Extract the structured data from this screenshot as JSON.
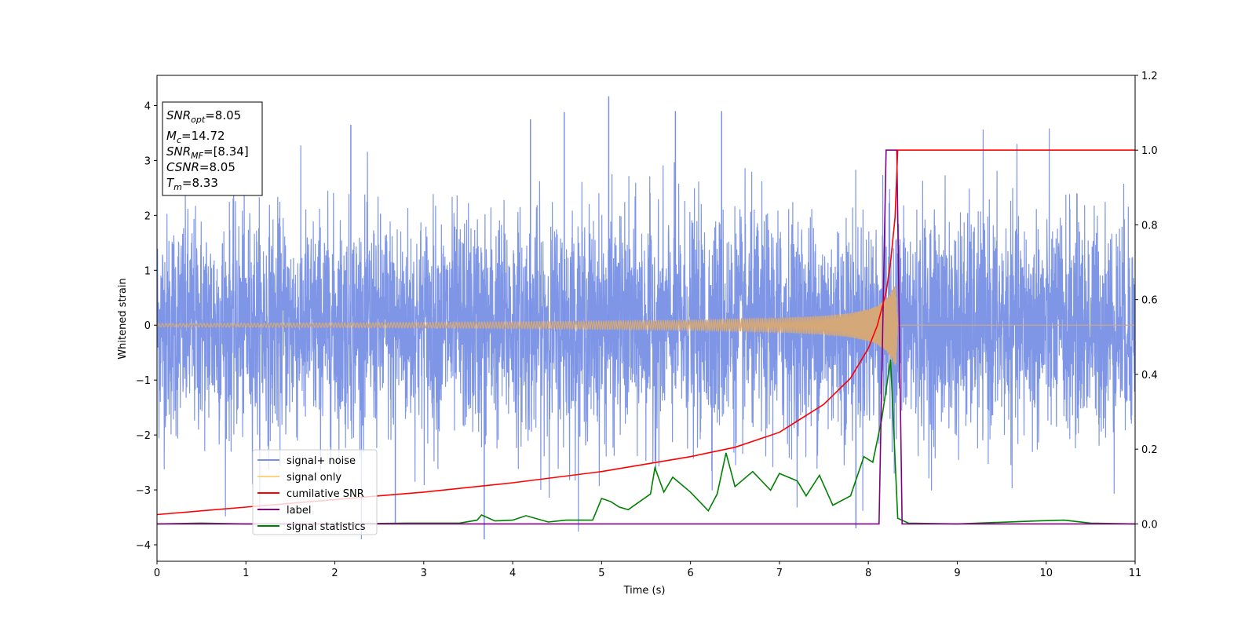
{
  "chart_data": {
    "type": "line",
    "xlabel": "Time (s)",
    "ylabel": "Whitened strain",
    "xlim": [
      0,
      11
    ],
    "ylim_left": [
      -4.3,
      4.55
    ],
    "ylim_right": [
      -0.1,
      1.2
    ],
    "x_ticks": [
      0,
      1,
      2,
      3,
      4,
      5,
      6,
      7,
      8,
      9,
      10,
      11
    ],
    "x_tick_labels": [
      "0",
      "1",
      "2",
      "3",
      "4",
      "5",
      "6",
      "7",
      "8",
      "9",
      "10",
      "11"
    ],
    "y_left_ticks": [
      -4,
      -3,
      -2,
      -1,
      0,
      1,
      2,
      3,
      4
    ],
    "y_left_tick_labels": [
      "−4",
      "−3",
      "−2",
      "−1",
      "0",
      "1",
      "2",
      "3",
      "4"
    ],
    "y_right_ticks": [
      0.0,
      0.2,
      0.4,
      0.6,
      0.8,
      1.0,
      1.2
    ],
    "y_right_tick_labels": [
      "0.0",
      "0.2",
      "0.4",
      "0.6",
      "0.8",
      "1.0",
      "1.2"
    ],
    "grid": false,
    "legend_position": "lower-left",
    "legend": [
      {
        "label": "signal+ noise",
        "color": "#7890e6"
      },
      {
        "label": "signal only",
        "color": "#ffd27f"
      },
      {
        "label": "cumilative SNR",
        "color": "#ff0000"
      },
      {
        "label": "label",
        "color": "#800080"
      },
      {
        "label": "signal statistics",
        "color": "#008000"
      }
    ],
    "annotation": {
      "lines": [
        {
          "symbol": "SNR",
          "sub": "opt",
          "value": "=8.05"
        },
        {
          "symbol": "M",
          "sub": "c",
          "value": "=14.72"
        },
        {
          "symbol": "SNR",
          "sub": "MF",
          "value": "=[8.34]"
        },
        {
          "symbol": "CSNR",
          "sub": "",
          "value": "=8.05"
        },
        {
          "symbol": "T",
          "sub": "m",
          "value": "=8.33"
        }
      ]
    },
    "series": [
      {
        "name": "signal+ noise",
        "axis": "left",
        "color": "#7890e6",
        "description_stats": {
          "t_start": 0,
          "t_end": 11,
          "std": 1.0,
          "min": -3.9,
          "max": 4.17
        },
        "peaks": [
          {
            "x": 5.08,
            "y": 4.17
          },
          {
            "x": 4.58,
            "y": 3.88
          },
          {
            "x": 5.83,
            "y": 3.9
          },
          {
            "x": 6.35,
            "y": 3.9
          },
          {
            "x": 2.18,
            "y": 3.65
          },
          {
            "x": 4.2,
            "y": 3.75
          },
          {
            "x": 3.68,
            "y": -3.9
          },
          {
            "x": 7.86,
            "y": -3.7
          },
          {
            "x": 2.68,
            "y": -3.6
          }
        ]
      },
      {
        "name": "signal only",
        "axis": "left",
        "color": "#ffd27f",
        "merger_time": 8.33,
        "envelope": [
          {
            "x": 0.0,
            "y": 0.03
          },
          {
            "x": 3.0,
            "y": 0.05
          },
          {
            "x": 6.0,
            "y": 0.09
          },
          {
            "x": 7.0,
            "y": 0.13
          },
          {
            "x": 7.5,
            "y": 0.17
          },
          {
            "x": 7.8,
            "y": 0.22
          },
          {
            "x": 8.0,
            "y": 0.29
          },
          {
            "x": 8.1,
            "y": 0.35
          },
          {
            "x": 8.2,
            "y": 0.48
          },
          {
            "x": 8.27,
            "y": 0.65
          },
          {
            "x": 8.31,
            "y": 0.75
          },
          {
            "x": 8.33,
            "y": 0.0
          }
        ]
      },
      {
        "name": "cumilative SNR",
        "axis": "right",
        "color": "#ff0000",
        "points": [
          {
            "x": 0.0,
            "y": 0.025
          },
          {
            "x": 1.0,
            "y": 0.045
          },
          {
            "x": 2.0,
            "y": 0.065
          },
          {
            "x": 3.0,
            "y": 0.085
          },
          {
            "x": 4.0,
            "y": 0.11
          },
          {
            "x": 5.0,
            "y": 0.14
          },
          {
            "x": 6.0,
            "y": 0.18
          },
          {
            "x": 6.5,
            "y": 0.205
          },
          {
            "x": 7.0,
            "y": 0.245
          },
          {
            "x": 7.5,
            "y": 0.32
          },
          {
            "x": 7.8,
            "y": 0.39
          },
          {
            "x": 8.0,
            "y": 0.47
          },
          {
            "x": 8.1,
            "y": 0.53
          },
          {
            "x": 8.2,
            "y": 0.62
          },
          {
            "x": 8.25,
            "y": 0.7
          },
          {
            "x": 8.3,
            "y": 0.82
          },
          {
            "x": 8.33,
            "y": 1.0
          },
          {
            "x": 11.0,
            "y": 1.0
          }
        ]
      },
      {
        "name": "label",
        "axis": "right",
        "color": "#800080",
        "points": [
          {
            "x": 0.0,
            "y": 0.0
          },
          {
            "x": 8.12,
            "y": 0.0
          },
          {
            "x": 8.2,
            "y": 1.0
          },
          {
            "x": 8.32,
            "y": 1.0
          },
          {
            "x": 8.38,
            "y": 0.0
          },
          {
            "x": 11.0,
            "y": 0.0
          }
        ]
      },
      {
        "name": "signal statistics",
        "axis": "right",
        "color": "#008000",
        "points": [
          {
            "x": 0.0,
            "y": 0.0
          },
          {
            "x": 0.5,
            "y": 0.002
          },
          {
            "x": 1.0,
            "y": 0.0
          },
          {
            "x": 2.0,
            "y": 0.0
          },
          {
            "x": 2.8,
            "y": 0.002
          },
          {
            "x": 3.4,
            "y": 0.002
          },
          {
            "x": 3.6,
            "y": 0.01
          },
          {
            "x": 3.65,
            "y": 0.024
          },
          {
            "x": 3.8,
            "y": 0.008
          },
          {
            "x": 4.0,
            "y": 0.01
          },
          {
            "x": 4.15,
            "y": 0.022
          },
          {
            "x": 4.4,
            "y": 0.005
          },
          {
            "x": 4.6,
            "y": 0.01
          },
          {
            "x": 4.9,
            "y": 0.01
          },
          {
            "x": 5.0,
            "y": 0.068
          },
          {
            "x": 5.1,
            "y": 0.06
          },
          {
            "x": 5.2,
            "y": 0.045
          },
          {
            "x": 5.3,
            "y": 0.038
          },
          {
            "x": 5.4,
            "y": 0.055
          },
          {
            "x": 5.55,
            "y": 0.08
          },
          {
            "x": 5.6,
            "y": 0.15
          },
          {
            "x": 5.7,
            "y": 0.085
          },
          {
            "x": 5.8,
            "y": 0.125
          },
          {
            "x": 6.0,
            "y": 0.085
          },
          {
            "x": 6.2,
            "y": 0.035
          },
          {
            "x": 6.3,
            "y": 0.08
          },
          {
            "x": 6.4,
            "y": 0.19
          },
          {
            "x": 6.5,
            "y": 0.1
          },
          {
            "x": 6.7,
            "y": 0.14
          },
          {
            "x": 6.9,
            "y": 0.09
          },
          {
            "x": 7.0,
            "y": 0.135
          },
          {
            "x": 7.2,
            "y": 0.115
          },
          {
            "x": 7.3,
            "y": 0.075
          },
          {
            "x": 7.45,
            "y": 0.13
          },
          {
            "x": 7.6,
            "y": 0.05
          },
          {
            "x": 7.8,
            "y": 0.075
          },
          {
            "x": 7.95,
            "y": 0.18
          },
          {
            "x": 8.05,
            "y": 0.165
          },
          {
            "x": 8.15,
            "y": 0.28
          },
          {
            "x": 8.25,
            "y": 0.44
          },
          {
            "x": 8.33,
            "y": 0.015
          },
          {
            "x": 8.45,
            "y": 0.002
          },
          {
            "x": 9.0,
            "y": 0.0
          },
          {
            "x": 9.9,
            "y": 0.008
          },
          {
            "x": 10.2,
            "y": 0.01
          },
          {
            "x": 10.5,
            "y": 0.002
          },
          {
            "x": 11.0,
            "y": 0.0
          }
        ]
      }
    ]
  }
}
